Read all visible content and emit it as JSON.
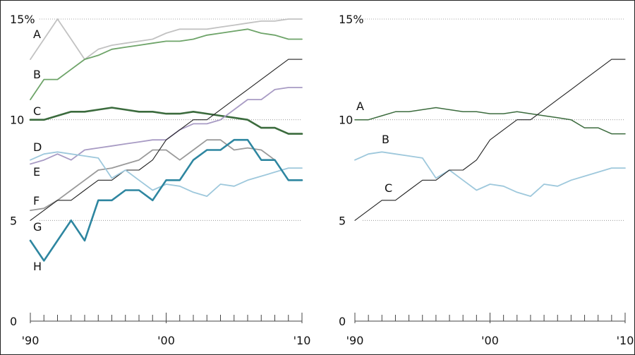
{
  "chart_data": [
    {
      "type": "line",
      "y_tick_labels": [
        "15%",
        "10",
        "5",
        "0"
      ],
      "x_tick_labels": [
        "'90",
        "'00",
        "'10"
      ],
      "x_range": [
        1990,
        2010
      ],
      "ylim": [
        0,
        15
      ],
      "grid": "dotted horizontal at 5, 10, 15",
      "series": [
        {
          "name": "A",
          "color": "#c2c2c2",
          "width": 1.8,
          "x": [
            1990,
            1991,
            1992,
            1993,
            1994,
            1995,
            1996,
            1997,
            1998,
            1999,
            2000,
            2001,
            2002,
            2003,
            2004,
            2005,
            2006,
            2007,
            2008,
            2009,
            2010
          ],
          "y": [
            13,
            14,
            15,
            14,
            13,
            13.5,
            13.7,
            13.8,
            13.9,
            14,
            14.3,
            14.5,
            14.5,
            14.5,
            14.6,
            14.7,
            14.8,
            14.9,
            14.9,
            15,
            15
          ]
        },
        {
          "name": "B",
          "color": "#6ea469",
          "width": 1.8,
          "x": [
            1990,
            1991,
            1992,
            1993,
            1994,
            1995,
            1996,
            1997,
            1998,
            1999,
            2000,
            2001,
            2002,
            2003,
            2004,
            2005,
            2006,
            2007,
            2008,
            2009,
            2010
          ],
          "y": [
            11,
            12,
            12,
            12.5,
            13,
            13.2,
            13.5,
            13.6,
            13.7,
            13.8,
            13.9,
            13.9,
            14,
            14.2,
            14.3,
            14.4,
            14.5,
            14.3,
            14.2,
            14,
            14
          ]
        },
        {
          "name": "C",
          "color": "#3b6b3d",
          "width": 2.6,
          "x": [
            1990,
            1991,
            1992,
            1993,
            1994,
            1995,
            1996,
            1997,
            1998,
            1999,
            2000,
            2001,
            2002,
            2003,
            2004,
            2005,
            2006,
            2007,
            2008,
            2009,
            2010
          ],
          "y": [
            10,
            10,
            10.2,
            10.4,
            10.4,
            10.5,
            10.6,
            10.5,
            10.4,
            10.4,
            10.3,
            10.3,
            10.4,
            10.3,
            10.2,
            10.1,
            10,
            9.6,
            9.6,
            9.3,
            9.3
          ]
        },
        {
          "name": "D",
          "color": "#a89bc4",
          "width": 1.8,
          "x": [
            1990,
            1991,
            1992,
            1993,
            1994,
            1995,
            1996,
            1997,
            1998,
            1999,
            2000,
            2001,
            2002,
            2003,
            2004,
            2005,
            2006,
            2007,
            2008,
            2009,
            2010
          ],
          "y": [
            7.8,
            8,
            8.3,
            8,
            8.5,
            8.6,
            8.7,
            8.8,
            8.9,
            9,
            9,
            9.5,
            9.8,
            9.8,
            10,
            10.5,
            11,
            11,
            11.5,
            11.6,
            11.6
          ]
        },
        {
          "name": "E",
          "color": "#9a9a9a",
          "width": 1.8,
          "x": [
            1990,
            1991,
            1992,
            1993,
            1994,
            1995,
            1996,
            1997,
            1998,
            1999,
            2000,
            2001,
            2002,
            2003,
            2004,
            2005,
            2006,
            2007,
            2008,
            2009,
            2010
          ],
          "y": [
            5.5,
            5.6,
            6,
            6.5,
            7,
            7.5,
            7.6,
            7.8,
            8,
            8.5,
            8.5,
            8,
            8.5,
            9,
            9,
            8.5,
            8.6,
            8.5,
            8,
            null,
            null
          ]
        },
        {
          "name": "F",
          "color": "#222222",
          "width": 1.1,
          "x": [
            1990,
            1991,
            1992,
            1993,
            1994,
            1995,
            1996,
            1997,
            1998,
            1999,
            2000,
            2001,
            2002,
            2003,
            2004,
            2005,
            2006,
            2007,
            2008,
            2009,
            2010
          ],
          "y": [
            5,
            5.5,
            6,
            6,
            6.5,
            7,
            7,
            7.5,
            7.5,
            8,
            9,
            9.5,
            10,
            10,
            10.5,
            11,
            11.5,
            12,
            12.5,
            13,
            13
          ]
        },
        {
          "name": "G",
          "color": "#9ec8dc",
          "width": 1.8,
          "x": [
            1990,
            1991,
            1992,
            1993,
            1994,
            1995,
            1996,
            1997,
            1998,
            1999,
            2000,
            2001,
            2002,
            2003,
            2004,
            2005,
            2006,
            2007,
            2008,
            2009,
            2010
          ],
          "y": [
            8,
            8.3,
            8.4,
            8.3,
            8.2,
            8.1,
            7.1,
            7.5,
            7,
            6.5,
            6.8,
            6.7,
            6.4,
            6.2,
            6.8,
            6.7,
            7,
            7.2,
            7.4,
            7.6,
            7.6
          ]
        },
        {
          "name": "H",
          "color": "#2e86a0",
          "width": 2.6,
          "x": [
            1990,
            1991,
            1992,
            1993,
            1994,
            1995,
            1996,
            1997,
            1998,
            1999,
            2000,
            2001,
            2002,
            2003,
            2004,
            2005,
            2006,
            2007,
            2008,
            2009,
            2010
          ],
          "y": [
            4,
            3,
            4,
            5,
            4,
            6,
            6,
            6.5,
            6.5,
            6,
            7,
            7,
            8,
            8.5,
            8.5,
            9,
            9,
            8,
            8,
            7,
            7
          ]
        }
      ]
    },
    {
      "type": "line",
      "y_tick_labels": [
        "15%",
        "10",
        "5",
        "0"
      ],
      "x_tick_labels": [
        "'90",
        "'00",
        "'10"
      ],
      "x_range": [
        1990,
        2010
      ],
      "ylim": [
        0,
        15
      ],
      "grid": "dotted horizontal at 5, 10, 15",
      "series": [
        {
          "name": "A",
          "color": "#3b6b3d",
          "width": 1.5,
          "x": [
            1990,
            1991,
            1992,
            1993,
            1994,
            1995,
            1996,
            1997,
            1998,
            1999,
            2000,
            2001,
            2002,
            2003,
            2004,
            2005,
            2006,
            2007,
            2008,
            2009,
            2010
          ],
          "y": [
            10,
            10,
            10.2,
            10.4,
            10.4,
            10.5,
            10.6,
            10.5,
            10.4,
            10.4,
            10.3,
            10.3,
            10.4,
            10.3,
            10.2,
            10.1,
            10,
            9.6,
            9.6,
            9.3,
            9.3
          ]
        },
        {
          "name": "B",
          "color": "#9ec8dc",
          "width": 1.8,
          "x": [
            1990,
            1991,
            1992,
            1993,
            1994,
            1995,
            1996,
            1997,
            1998,
            1999,
            2000,
            2001,
            2002,
            2003,
            2004,
            2005,
            2006,
            2007,
            2008,
            2009,
            2010
          ],
          "y": [
            8,
            8.3,
            8.4,
            8.3,
            8.2,
            8.1,
            7.1,
            7.5,
            7,
            6.5,
            6.8,
            6.7,
            6.4,
            6.2,
            6.8,
            6.7,
            7,
            7.2,
            7.4,
            7.6,
            7.6
          ]
        },
        {
          "name": "C",
          "color": "#222222",
          "width": 1.1,
          "x": [
            1990,
            1991,
            1992,
            1993,
            1994,
            1995,
            1996,
            1997,
            1998,
            1999,
            2000,
            2001,
            2002,
            2003,
            2004,
            2005,
            2006,
            2007,
            2008,
            2009,
            2010
          ],
          "y": [
            5,
            5.5,
            6,
            6,
            6.5,
            7,
            7,
            7.5,
            7.5,
            8,
            9,
            9.5,
            10,
            10,
            10.5,
            11,
            11.5,
            12,
            12.5,
            13,
            13
          ]
        }
      ]
    }
  ]
}
